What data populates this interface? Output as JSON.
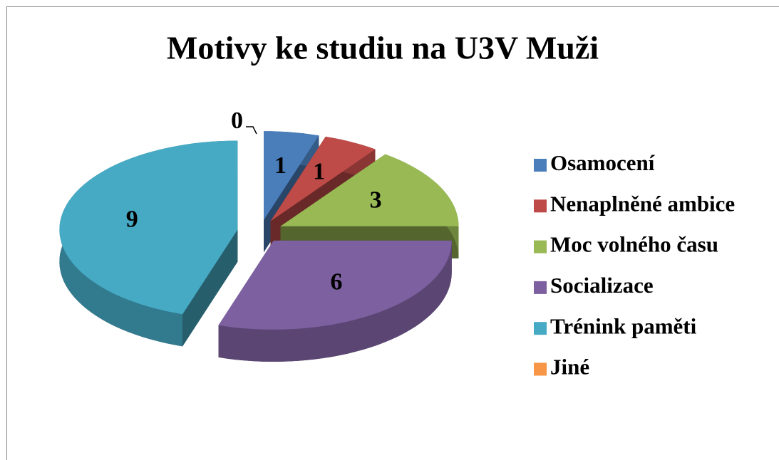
{
  "chart_data": {
    "type": "pie",
    "title": "Motivy ke studiu na U3V Muži",
    "categories": [
      "Osamocení",
      "Nenaplněné ambice",
      "Moc volného času",
      "Socializace",
      "Trénink paměti",
      "Jiné"
    ],
    "values": [
      1,
      1,
      3,
      6,
      9,
      0
    ],
    "colors": [
      "#4a7ebb",
      "#be4b48",
      "#98b954",
      "#7d60a0",
      "#46aac5",
      "#f79646"
    ],
    "legend": "right"
  }
}
